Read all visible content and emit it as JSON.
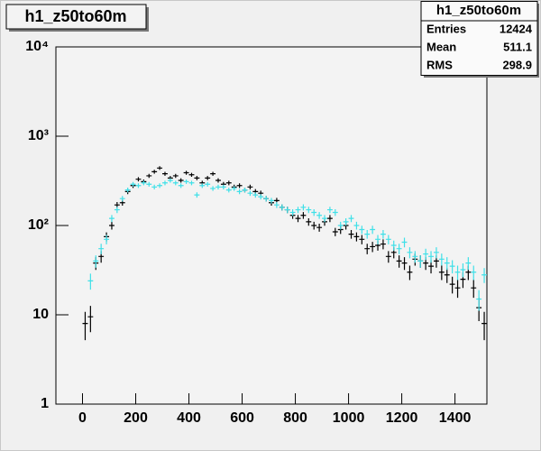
{
  "chart_data": {
    "type": "histogram",
    "title": "h1_z50to60m",
    "stats": {
      "title": "h1_z50to60m",
      "rows": [
        {
          "label": "Entries",
          "value": 12424
        },
        {
          "label": "Mean",
          "value": 511.1
        },
        {
          "label": "RMS",
          "value": 298.9
        }
      ]
    },
    "bins": [
      0,
      20,
      40,
      60,
      80,
      100,
      120,
      140,
      160,
      180,
      200,
      220,
      240,
      260,
      280,
      300,
      320,
      340,
      360,
      380,
      400,
      420,
      440,
      460,
      480,
      500,
      520,
      540,
      560,
      580,
      600,
      620,
      640,
      660,
      680,
      700,
      720,
      740,
      760,
      780,
      800,
      820,
      840,
      860,
      880,
      900,
      920,
      940,
      960,
      980,
      1000,
      1020,
      1040,
      1060,
      1080,
      1100,
      1120,
      1140,
      1160,
      1180,
      1200,
      1220,
      1240,
      1260,
      1280,
      1300,
      1320,
      1340,
      1360,
      1380,
      1400,
      1420,
      1440,
      1460,
      1480,
      1500,
      1520
    ],
    "series": [
      {
        "color": "#000000",
        "values": [
          8,
          9.5,
          38,
          45,
          75,
          100,
          170,
          180,
          240,
          280,
          330,
          310,
          360,
          400,
          440,
          380,
          340,
          360,
          320,
          390,
          370,
          340,
          300,
          340,
          380,
          320,
          290,
          300,
          270,
          280,
          250,
          270,
          240,
          230,
          200,
          180,
          190,
          160,
          150,
          130,
          120,
          130,
          110,
          100,
          95,
          110,
          120,
          85,
          90,
          100,
          80,
          75,
          70,
          55,
          58,
          60,
          62,
          45,
          50,
          40,
          38,
          30,
          42,
          40,
          38,
          35,
          40,
          30,
          28,
          22,
          20,
          25,
          30,
          20,
          12,
          8
        ],
        "errors": [
          2.8,
          3.1,
          6.2,
          6.7,
          8.7,
          10,
          13,
          13.4,
          15.5,
          16.7,
          18.2,
          17.6,
          19,
          20,
          21,
          19.5,
          18.4,
          19,
          17.9,
          19.7,
          19.2,
          18.4,
          17.3,
          18.4,
          19.5,
          17.9,
          17,
          17.3,
          16.4,
          16.7,
          15.8,
          16.4,
          15.5,
          15.2,
          14.1,
          13.4,
          13.8,
          12.6,
          12.2,
          11.4,
          11,
          11.4,
          10.5,
          10,
          9.7,
          10.5,
          11,
          9.2,
          9.5,
          10,
          8.9,
          8.7,
          8.4,
          7.4,
          7.6,
          7.7,
          7.9,
          6.7,
          7.1,
          6.3,
          6.2,
          5.5,
          6.5,
          6.3,
          6.2,
          5.9,
          6.3,
          5.5,
          5.3,
          4.7,
          4.5,
          5,
          5.5,
          4.5,
          3.5,
          2.8
        ]
      },
      {
        "color": "#3fe0e8",
        "values": [
          null,
          24,
          40,
          55,
          70,
          120,
          150,
          200,
          250,
          290,
          280,
          300,
          290,
          270,
          280,
          300,
          320,
          300,
          280,
          310,
          300,
          220,
          280,
          290,
          260,
          270,
          270,
          250,
          260,
          240,
          250,
          230,
          220,
          210,
          200,
          190,
          170,
          160,
          150,
          140,
          150,
          160,
          150,
          140,
          130,
          120,
          150,
          140,
          100,
          110,
          120,
          100,
          90,
          80,
          90,
          70,
          80,
          70,
          60,
          55,
          65,
          50,
          45,
          40,
          48,
          45,
          50,
          42,
          38,
          35,
          30,
          32,
          38,
          30,
          15,
          28
        ],
        "errors": [
          null,
          4.9,
          6.3,
          7.4,
          8.4,
          11,
          12.2,
          14.1,
          15.8,
          17,
          16.7,
          17.3,
          17,
          16.4,
          16.7,
          17.3,
          17.9,
          17.3,
          16.7,
          17.6,
          17.3,
          14.8,
          16.7,
          17,
          16.1,
          16.4,
          16.4,
          15.8,
          16.1,
          15.5,
          15.8,
          15.2,
          14.8,
          14.5,
          14.1,
          13.8,
          13,
          12.6,
          12.2,
          11.8,
          12.2,
          12.6,
          12.2,
          11.8,
          11.4,
          11,
          12.2,
          11.8,
          10,
          10.5,
          11,
          10,
          9.5,
          8.9,
          9.5,
          8.4,
          8.9,
          8.4,
          7.7,
          7.4,
          8.1,
          7.1,
          6.7,
          6.3,
          6.9,
          6.7,
          7.1,
          6.5,
          6.2,
          5.9,
          5.5,
          5.7,
          6.2,
          5.5,
          3.9,
          5.3
        ]
      }
    ],
    "xlim": [
      -100,
      1520
    ],
    "xticks": [
      0,
      200,
      400,
      600,
      800,
      1000,
      1200,
      1400
    ],
    "ylim": [
      1,
      10000
    ],
    "ylog": true,
    "yticks": [
      1,
      10,
      {
        "value": 100,
        "label": "10²"
      },
      {
        "value": 1000,
        "label": "10³"
      },
      {
        "value": 10000,
        "label": "10⁴"
      }
    ]
  }
}
